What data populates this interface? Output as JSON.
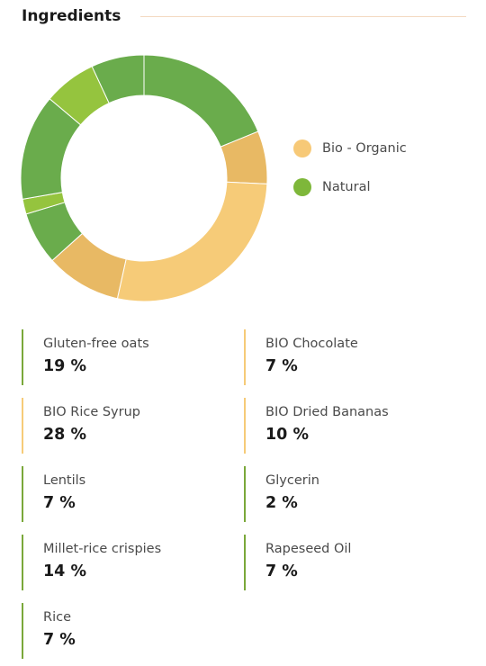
{
  "header": {
    "title": "Ingredients"
  },
  "colors": {
    "organic": "#f6cb78",
    "organic_dark": "#e8b964",
    "natural": "#6aac4c",
    "natural_light": "#95c43e",
    "legend_organic": "#f7c977",
    "legend_natural": "#7eb73a",
    "border_organic": "#f6cb78",
    "border_natural": "#7aa83a"
  },
  "legend": [
    {
      "label": "Bio - Organic",
      "color": "#f7c977"
    },
    {
      "label": "Natural",
      "color": "#7eb73a"
    }
  ],
  "chart_data": {
    "type": "pie",
    "variant": "donut",
    "start": "top",
    "direction": "clockwise",
    "slices": [
      {
        "name": "Gluten-free oats",
        "value": 19,
        "category": "Natural",
        "color": "#6aac4c"
      },
      {
        "name": "BIO Chocolate",
        "value": 7,
        "category": "Bio - Organic",
        "color": "#e8b964"
      },
      {
        "name": "BIO Rice Syrup",
        "value": 28,
        "category": "Bio - Organic",
        "color": "#f6cb78"
      },
      {
        "name": "BIO Dried Bananas",
        "value": 10,
        "category": "Bio - Organic",
        "color": "#e8b964"
      },
      {
        "name": "Lentils",
        "value": 7,
        "category": "Natural",
        "color": "#6aac4c"
      },
      {
        "name": "Glycerin",
        "value": 2,
        "category": "Natural",
        "color": "#95c43e"
      },
      {
        "name": "Millet-rice crispies",
        "value": 14,
        "category": "Natural",
        "color": "#6aac4c"
      },
      {
        "name": "Rapeseed Oil",
        "value": 7,
        "category": "Natural",
        "color": "#95c43e"
      },
      {
        "name": "Rice",
        "value": 7,
        "category": "Natural",
        "color": "#6aac4c"
      }
    ],
    "legend_position": "right"
  },
  "ingredients": [
    {
      "name": "Gluten-free oats",
      "pct": "19 %",
      "type": "natural"
    },
    {
      "name": "BIO Chocolate",
      "pct": "7 %",
      "type": "organic"
    },
    {
      "name": "BIO Rice Syrup",
      "pct": "28 %",
      "type": "organic"
    },
    {
      "name": "BIO Dried Bananas",
      "pct": "10 %",
      "type": "organic"
    },
    {
      "name": "Lentils",
      "pct": "7 %",
      "type": "natural"
    },
    {
      "name": "Glycerin",
      "pct": "2 %",
      "type": "natural"
    },
    {
      "name": "Millet-rice crispies",
      "pct": "14 %",
      "type": "natural"
    },
    {
      "name": "Rapeseed Oil",
      "pct": "7 %",
      "type": "natural"
    },
    {
      "name": "Rice",
      "pct": "7 %",
      "type": "natural"
    }
  ]
}
